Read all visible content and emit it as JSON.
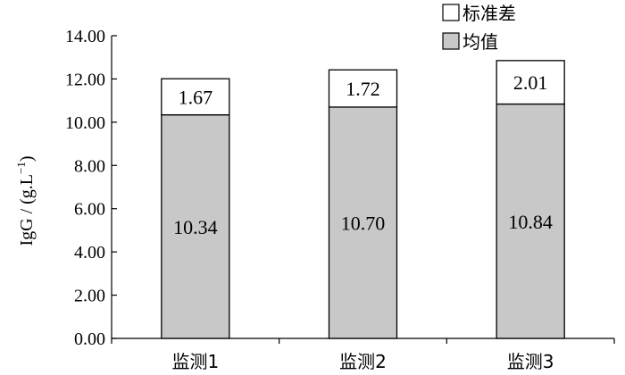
{
  "chart_data": {
    "type": "bar",
    "stacked": true,
    "categories": [
      "监测1",
      "监测2",
      "监测3"
    ],
    "series": [
      {
        "name": "均值",
        "values": [
          10.34,
          10.7,
          10.84
        ],
        "color": "#c8c8c8",
        "value_labels": [
          "10.34",
          "10.70",
          "10.84"
        ]
      },
      {
        "name": "标准差",
        "values": [
          1.67,
          1.72,
          2.01
        ],
        "color": "#ffffff",
        "value_labels": [
          "1.67",
          "1.72",
          "2.01"
        ]
      }
    ],
    "ylabel_main": "IgG / (g.L",
    "ylabel_sup": "−1",
    "ylabel_tail": ")",
    "ylim": [
      0,
      14
    ],
    "yticks": [
      "0.00",
      "2.00",
      "4.00",
      "6.00",
      "8.00",
      "10.00",
      "12.00",
      "14.00"
    ],
    "legend_position": "top-right",
    "grid": false
  }
}
